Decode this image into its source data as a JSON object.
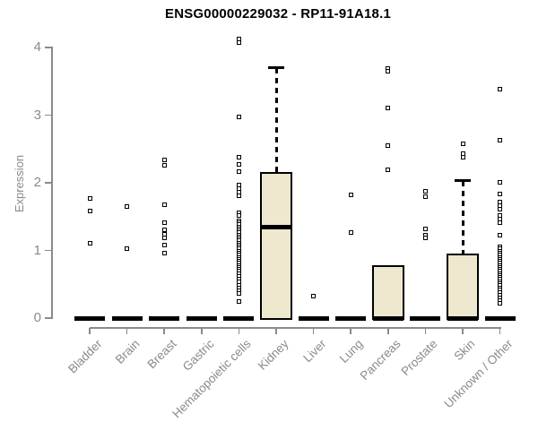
{
  "chart_data": {
    "type": "boxplot",
    "title": "ENSG00000229032 - RP11-91A18.1",
    "ylabel": "Expression",
    "xlabel": "",
    "ylim": [
      0,
      4.15
    ],
    "yticks": [
      0,
      1,
      2,
      3,
      4
    ],
    "grid": false,
    "legend": "none",
    "categories": [
      "Bladder",
      "Brain",
      "Breast",
      "Gastric",
      "Hematopoietic cells",
      "Kidney",
      "Liver",
      "Lung",
      "Pancreas",
      "Prostate",
      "Skin",
      "Unknown / Other"
    ],
    "series": [
      {
        "category": "Bladder",
        "q1": 0,
        "median": 0,
        "q3": 0,
        "whisker_low": 0,
        "whisker_high": 0,
        "outliers": [
          1.77,
          1.58,
          1.1
        ]
      },
      {
        "category": "Brain",
        "q1": 0,
        "median": 0,
        "q3": 0,
        "whisker_low": 0,
        "whisker_high": 0,
        "outliers": [
          1.65,
          1.03
        ]
      },
      {
        "category": "Breast",
        "q1": 0,
        "median": 0,
        "q3": 0,
        "whisker_low": 0,
        "whisker_high": 0,
        "outliers": [
          2.34,
          2.26,
          1.68,
          1.41,
          1.3,
          1.24,
          1.18,
          1.08,
          0.96
        ]
      },
      {
        "category": "Gastric",
        "q1": 0,
        "median": 0,
        "q3": 0,
        "whisker_low": 0,
        "whisker_high": 0,
        "outliers": []
      },
      {
        "category": "Hematopoietic cells",
        "q1": 0,
        "median": 0,
        "q3": 0,
        "whisker_low": 0,
        "whisker_high": 0,
        "outliers": [
          4.12,
          4.07,
          2.97,
          2.38,
          2.27,
          2.16,
          1.97,
          1.92,
          1.86,
          1.81,
          1.56,
          1.51,
          1.44,
          1.41,
          1.38,
          1.35,
          1.32,
          1.29,
          1.26,
          1.23,
          1.2,
          1.17,
          1.14,
          1.11,
          1.08,
          1.05,
          1.02,
          0.99,
          0.96,
          0.93,
          0.9,
          0.87,
          0.84,
          0.81,
          0.78,
          0.75,
          0.72,
          0.69,
          0.66,
          0.62,
          0.58,
          0.53,
          0.49,
          0.45,
          0.41,
          0.37,
          0.24
        ]
      },
      {
        "category": "Kidney",
        "q1": 0,
        "median": 1.34,
        "q3": 2.15,
        "whisker_low": 0,
        "whisker_high": 3.7,
        "outliers": []
      },
      {
        "category": "Liver",
        "q1": 0,
        "median": 0,
        "q3": 0,
        "whisker_low": 0,
        "whisker_high": 0,
        "outliers": [
          0.33
        ]
      },
      {
        "category": "Lung",
        "q1": 0,
        "median": 0,
        "q3": 0,
        "whisker_low": 0,
        "whisker_high": 0,
        "outliers": [
          1.82,
          1.27
        ]
      },
      {
        "category": "Pancreas",
        "q1": 0,
        "median": 0,
        "q3": 0.77,
        "whisker_low": 0,
        "whisker_high": 0.77,
        "outliers": [
          3.69,
          3.65,
          3.1,
          2.55,
          2.19
        ]
      },
      {
        "category": "Prostate",
        "q1": 0,
        "median": 0,
        "q3": 0,
        "whisker_low": 0,
        "whisker_high": 0,
        "outliers": [
          1.87,
          1.8,
          1.32,
          1.22,
          1.19
        ]
      },
      {
        "category": "Skin",
        "q1": 0,
        "median": 0,
        "q3": 0.94,
        "whisker_low": 0,
        "whisker_high": 2.03,
        "outliers": [
          2.58,
          2.43,
          2.38
        ]
      },
      {
        "category": "Unknown / Other",
        "q1": 0,
        "median": 0,
        "q3": 0,
        "whisker_low": 0,
        "whisker_high": 0,
        "outliers": [
          3.38,
          2.63,
          2.01,
          1.84,
          1.71,
          1.66,
          1.61,
          1.51,
          1.46,
          1.41,
          1.22,
          1.05,
          1.02,
          0.99,
          0.96,
          0.93,
          0.9,
          0.87,
          0.84,
          0.81,
          0.78,
          0.75,
          0.72,
          0.69,
          0.66,
          0.63,
          0.6,
          0.57,
          0.54,
          0.51,
          0.48,
          0.45,
          0.42,
          0.38,
          0.34,
          0.3,
          0.26,
          0.22
        ]
      }
    ],
    "colors": {
      "box_fill": "#EDE8CE",
      "box_border": "#000000",
      "median": "#000000",
      "outlier": "#000000",
      "axis": "#8A8A8A",
      "tick_label": "#8A8A8A",
      "title": "#000000",
      "background": "#FFFFFF"
    }
  }
}
